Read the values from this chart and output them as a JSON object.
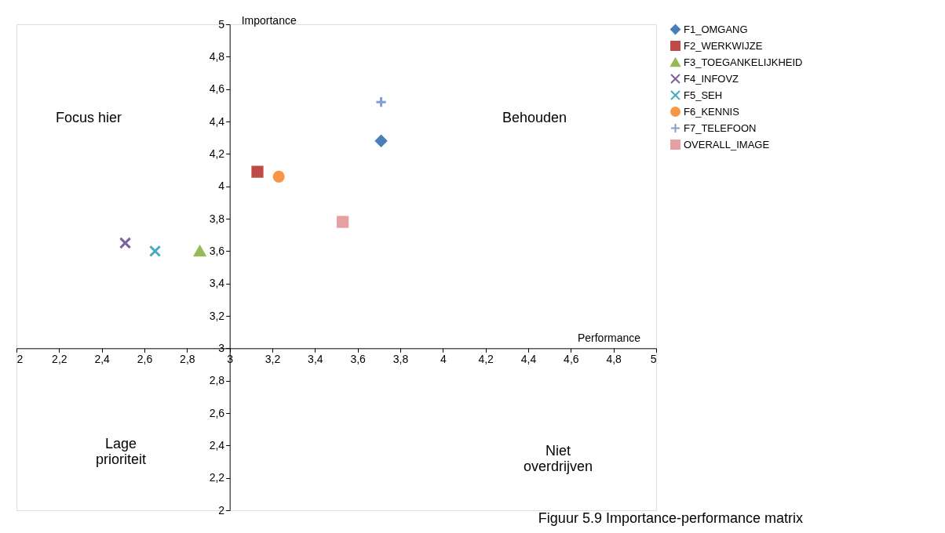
{
  "chart_data": {
    "type": "scatter",
    "title": "Figuur 5.9 Importance-performance matrix",
    "xlabel": "Performance",
    "ylabel": "Importance",
    "xlim": [
      2,
      5
    ],
    "ylim": [
      2,
      5
    ],
    "xticks": [
      2,
      {
        "value": 2.2,
        "label": "2,2"
      },
      {
        "value": 2.4,
        "label": "2,4"
      },
      {
        "value": 2.6,
        "label": "2,6"
      },
      {
        "value": 2.8,
        "label": "2,8"
      },
      3,
      {
        "value": 3.2,
        "label": "3,2"
      },
      {
        "value": 3.4,
        "label": "3,4"
      },
      {
        "value": 3.6,
        "label": "3,6"
      },
      {
        "value": 3.8,
        "label": "3,8"
      },
      4,
      {
        "value": 4.2,
        "label": "4,2"
      },
      {
        "value": 4.4,
        "label": "4,4"
      },
      {
        "value": 4.6,
        "label": "4,6"
      },
      {
        "value": 4.8,
        "label": "4,8"
      },
      5
    ],
    "yticks": [
      2,
      {
        "value": 2.2,
        "label": "2,2"
      },
      {
        "value": 2.4,
        "label": "2,4"
      },
      {
        "value": 2.6,
        "label": "2,6"
      },
      {
        "value": 2.8,
        "label": "2,8"
      },
      3,
      {
        "value": 3.2,
        "label": "3,2"
      },
      {
        "value": 3.4,
        "label": "3,4"
      },
      {
        "value": 3.6,
        "label": "3,6"
      },
      {
        "value": 3.8,
        "label": "3,8"
      },
      4,
      {
        "value": 4.2,
        "label": "4,2"
      },
      {
        "value": 4.4,
        "label": "4,4"
      },
      {
        "value": 4.6,
        "label": "4,6"
      },
      {
        "value": 4.8,
        "label": "4,8"
      },
      5
    ],
    "grid": false,
    "legend": "right",
    "annotations": [
      "Focus hier",
      "Behouden",
      "Lage prioriteit",
      "Niet overdrijven"
    ],
    "series": [
      {
        "name": "F1_OMGANG",
        "color": "#4a7ebb",
        "marker": "diamond",
        "x": [
          3.71
        ],
        "values": [
          4.28
        ]
      },
      {
        "name": "F2_WERKWIJZE",
        "color": "#be4b48",
        "marker": "square",
        "x": [
          3.13
        ],
        "values": [
          4.09
        ]
      },
      {
        "name": "F3_TOEGANKELIJKHEID",
        "color": "#98b954",
        "marker": "triangle",
        "x": [
          2.86
        ],
        "values": [
          3.6
        ]
      },
      {
        "name": "F4_INFOVZ",
        "color": "#7d60a0",
        "marker": "cross",
        "x": [
          2.51
        ],
        "values": [
          3.65
        ]
      },
      {
        "name": "F5_SEH",
        "color": "#46aac5",
        "marker": "cross",
        "x": [
          2.65
        ],
        "values": [
          3.6
        ]
      },
      {
        "name": "F6_KENNIS",
        "color": "#f79646",
        "marker": "circle",
        "x": [
          3.23
        ],
        "values": [
          4.06
        ]
      },
      {
        "name": "F7_TELEFOON",
        "color": "#7f9fd4",
        "marker": "plus",
        "x": [
          3.71
        ],
        "values": [
          4.52
        ]
      },
      {
        "name": "OVERALL_IMAGE",
        "color": "#e6a0a0",
        "marker": "square",
        "x": [
          3.53
        ],
        "values": [
          3.78
        ]
      }
    ]
  }
}
